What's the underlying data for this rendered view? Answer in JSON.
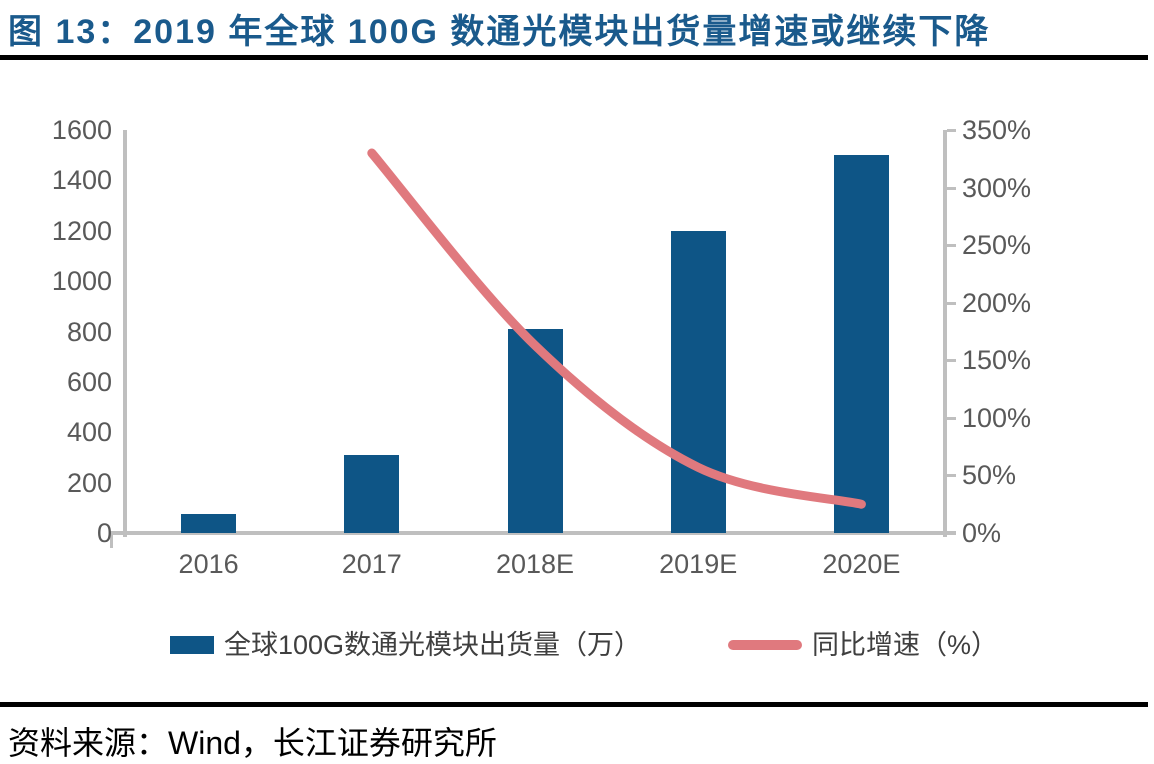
{
  "figure": {
    "title": "图 13：2019 年全球 100G 数通光模块出货量增速或继续下降",
    "source": "资料来源：Wind，长江证券研究所"
  },
  "colors": {
    "title_text": "#1A5A8C",
    "bar_fill": "#0E5586",
    "line_stroke": "#E0797E",
    "axis_line": "#BFBFBF",
    "tick_text": "#595959",
    "legend_text": "#3F3F3F",
    "divider": "#000000",
    "source_text": "#000000"
  },
  "chart_data": {
    "type": "bar",
    "subtype": "bar-line-combo",
    "categories": [
      "2016",
      "2017",
      "2018E",
      "2019E",
      "2020E"
    ],
    "series": [
      {
        "name": "全球100G数通光模块出货量（万）",
        "type": "bar",
        "axis": "left",
        "color": "#0E5586",
        "values": [
          75,
          310,
          810,
          1200,
          1500
        ]
      },
      {
        "name": "同比增速（%）",
        "type": "line",
        "axis": "right",
        "color": "#E0797E",
        "values": [
          null,
          330,
          163,
          57,
          25
        ]
      }
    ],
    "left_axis": {
      "min": 0,
      "max": 1600,
      "step": 200,
      "tick_labels": [
        "0",
        "200",
        "400",
        "600",
        "800",
        "1000",
        "1200",
        "1400",
        "1600"
      ]
    },
    "right_axis": {
      "min": 0,
      "max": 350,
      "step": 50,
      "tick_labels": [
        "0%",
        "50%",
        "100%",
        "150%",
        "200%",
        "250%",
        "300%",
        "350%"
      ]
    },
    "grid": false,
    "legend_position": "bottom",
    "title": "图 13：2019 年全球 100G 数通光模块出货量增速或继续下降",
    "xlabel": "",
    "ylabel_left": "出货量（万）",
    "ylabel_right": "同比增速（%）"
  }
}
